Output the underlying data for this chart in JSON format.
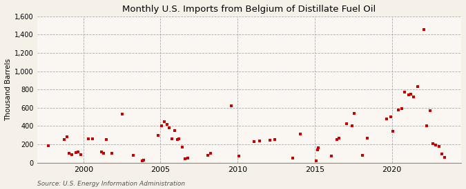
{
  "title": "Monthly U.S. Imports from Belgium of Distillate Fuel Oil",
  "ylabel": "Thousand Barrels",
  "source": "Source: U.S. Energy Information Administration",
  "background_color": "#f5f0e8",
  "plot_background_color": "#faf7f2",
  "marker_color": "#cc0000",
  "ylim": [
    0,
    1600
  ],
  "yticks": [
    0,
    200,
    400,
    600,
    800,
    1000,
    1200,
    1400,
    1600
  ],
  "ytick_labels": [
    "0",
    "200",
    "400",
    "600",
    "800",
    "1,000",
    "1,200",
    "1,400",
    "1,600"
  ],
  "xticks": [
    2000,
    2005,
    2010,
    2015,
    2020
  ],
  "xlim": [
    1997.0,
    2024.5
  ],
  "data": [
    [
      1997.75,
      182
    ],
    [
      1998.75,
      250
    ],
    [
      1998.92,
      280
    ],
    [
      1999.08,
      105
    ],
    [
      1999.25,
      85
    ],
    [
      1999.5,
      110
    ],
    [
      1999.67,
      120
    ],
    [
      1999.83,
      90
    ],
    [
      2000.33,
      260
    ],
    [
      2000.58,
      260
    ],
    [
      2001.17,
      120
    ],
    [
      2001.33,
      100
    ],
    [
      2001.5,
      250
    ],
    [
      2001.83,
      100
    ],
    [
      2002.5,
      530
    ],
    [
      2003.25,
      80
    ],
    [
      2003.83,
      20
    ],
    [
      2003.92,
      30
    ],
    [
      2004.83,
      300
    ],
    [
      2005.08,
      400
    ],
    [
      2005.25,
      450
    ],
    [
      2005.42,
      420
    ],
    [
      2005.58,
      380
    ],
    [
      2005.75,
      260
    ],
    [
      2005.92,
      350
    ],
    [
      2006.08,
      250
    ],
    [
      2006.17,
      260
    ],
    [
      2006.42,
      170
    ],
    [
      2006.58,
      40
    ],
    [
      2006.75,
      50
    ],
    [
      2008.08,
      80
    ],
    [
      2008.25,
      100
    ],
    [
      2009.58,
      620
    ],
    [
      2010.08,
      70
    ],
    [
      2011.08,
      230
    ],
    [
      2011.42,
      240
    ],
    [
      2012.08,
      245
    ],
    [
      2012.42,
      250
    ],
    [
      2013.58,
      50
    ],
    [
      2014.08,
      310
    ],
    [
      2015.08,
      20
    ],
    [
      2015.17,
      140
    ],
    [
      2015.25,
      160
    ],
    [
      2016.08,
      70
    ],
    [
      2016.42,
      250
    ],
    [
      2016.58,
      265
    ],
    [
      2017.08,
      430
    ],
    [
      2017.42,
      400
    ],
    [
      2017.58,
      540
    ],
    [
      2018.08,
      80
    ],
    [
      2018.42,
      265
    ],
    [
      2019.67,
      480
    ],
    [
      2019.92,
      500
    ],
    [
      2020.08,
      340
    ],
    [
      2020.42,
      580
    ],
    [
      2020.67,
      590
    ],
    [
      2020.83,
      770
    ],
    [
      2021.08,
      740
    ],
    [
      2021.25,
      750
    ],
    [
      2021.42,
      720
    ],
    [
      2021.67,
      830
    ],
    [
      2022.08,
      1460
    ],
    [
      2022.25,
      400
    ],
    [
      2022.5,
      570
    ],
    [
      2022.67,
      210
    ],
    [
      2022.83,
      190
    ],
    [
      2023.08,
      180
    ],
    [
      2023.25,
      95
    ],
    [
      2023.42,
      60
    ]
  ]
}
